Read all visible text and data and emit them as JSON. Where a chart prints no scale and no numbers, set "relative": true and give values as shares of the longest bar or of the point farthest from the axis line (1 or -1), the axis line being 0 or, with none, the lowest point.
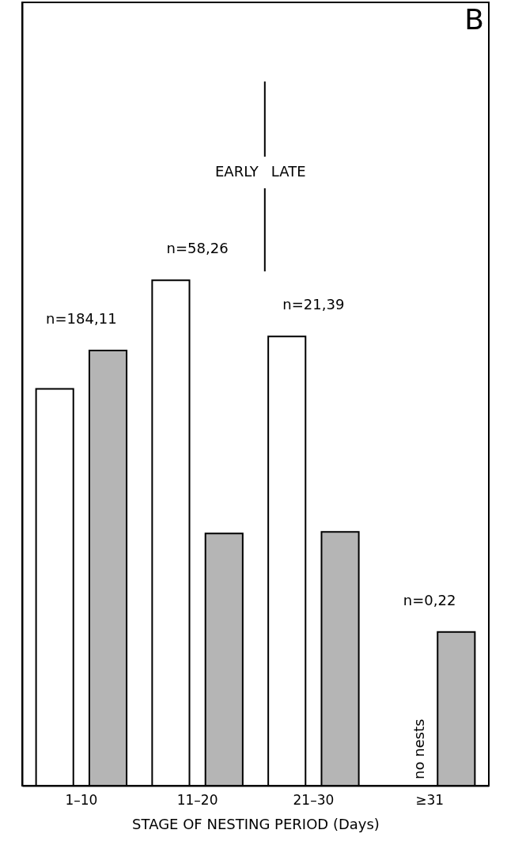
{
  "chart_data": {
    "type": "bar",
    "relative": true,
    "xlabel": "STAGE OF NESTING PERIOD (Days)",
    "categories": [
      "1–10",
      "11–20",
      "21–30",
      "≥31"
    ],
    "series": [
      {
        "color": "#ffffff",
        "values": [
          0.785,
          1,
          0.889,
          null
        ]
      },
      {
        "color": "#b5b5b5",
        "values": [
          0.861,
          0.499,
          0.502,
          0.304
        ]
      }
    ],
    "annotations": [
      "B",
      "EARLY",
      "LATE",
      "n=184,11",
      "n=58,26",
      "n=21,39",
      "n=0,22",
      "no nests"
    ],
    "grid": false,
    "legend": false
  }
}
